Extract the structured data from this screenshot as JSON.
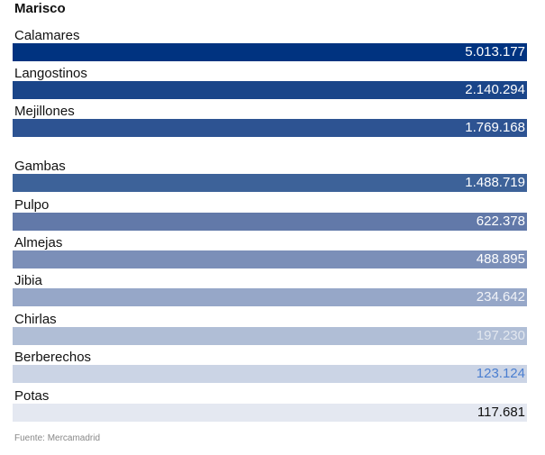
{
  "chart_data": {
    "type": "bar",
    "title": "Marisco",
    "categories": [
      "Calamares",
      "Langostinos",
      "Mejillones",
      "Gambas",
      "Pulpo",
      "Almejas",
      "Jibia",
      "Chirlas",
      "Berberechos",
      "Potas"
    ],
    "values": [
      5013177,
      2140294,
      1769168,
      1488719,
      622378,
      488895,
      234642,
      197230,
      123124,
      117681
    ],
    "value_labels": [
      "5.013.177",
      "2.140.294",
      "1.769.168",
      "1.488.719",
      "622.378",
      "488.895",
      "234.642",
      "197.230",
      "123.124",
      "117.681"
    ],
    "bar_colors": [
      "#003380",
      "#1a4589",
      "#2d5392",
      "#3d6299",
      "#6279a9",
      "#7b8fb8",
      "#96a7c8",
      "#b0bed6",
      "#cbd4e5",
      "#e4e8f1"
    ],
    "value_text_colors": [
      "#ffffff",
      "#ffffff",
      "#ffffff",
      "#ffffff",
      "#ffffff",
      "#ffffff",
      "#f0f2f7",
      "#e2e7ef",
      "#4a7ed0",
      "#111111"
    ],
    "xlabel": "",
    "ylabel": ""
  },
  "source": "Fuente: Mercamadrid"
}
